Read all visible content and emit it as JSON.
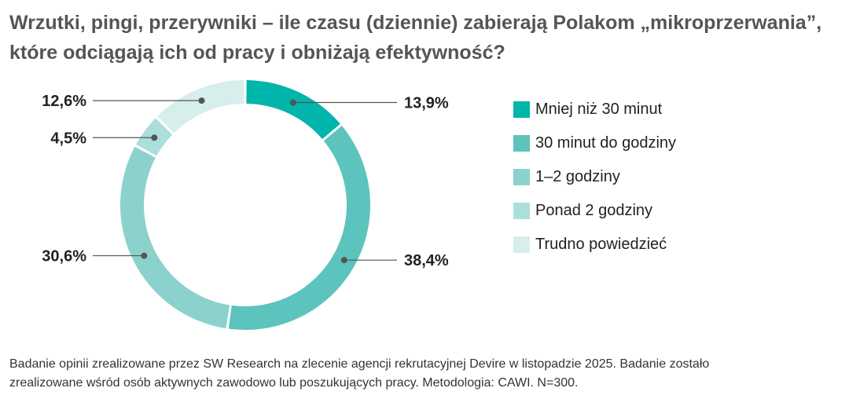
{
  "title": {
    "line1": "Wrzutki, pingi, przerywniki – ile czasu (dziennie) zabierają Polakom „mikroprzerwania”,",
    "line2": "które odciągają ich od pracy i obniżają efektywność?"
  },
  "chart_data": {
    "type": "pie",
    "variant": "donut",
    "title": "Wrzutki, pingi, przerywniki – ile czasu (dziennie) zabierają Polakom „mikroprzerwania”, które odciągają ich od pracy i obniżają efektywność?",
    "legend_position": "right",
    "unit": "%",
    "categories": [
      "Mniej niż 30 minut",
      "30 minut do godziny",
      "1–2 godziny",
      "Ponad 2 godziny",
      "Trudno powiedzieć"
    ],
    "values": [
      13.9,
      38.4,
      30.6,
      4.5,
      12.6
    ],
    "labels": [
      "13,9%",
      "38,4%",
      "30,6%",
      "4,5%",
      "12,6%"
    ],
    "colors": [
      "#02b5ab",
      "#5cc4bc",
      "#8bd2cc",
      "#acdedb",
      "#d6eeec"
    ]
  },
  "footnote": {
    "line1": "Badanie opinii zrealizowane przez SW Research na zlecenie agencji rekrutacyjnej Devire w listopadzie 2025. Badanie zostało",
    "line2": "zrealizowane wśród osób aktywnych zawodowo lub poszukujących pracy. Metodologia: CAWI. N=300."
  }
}
